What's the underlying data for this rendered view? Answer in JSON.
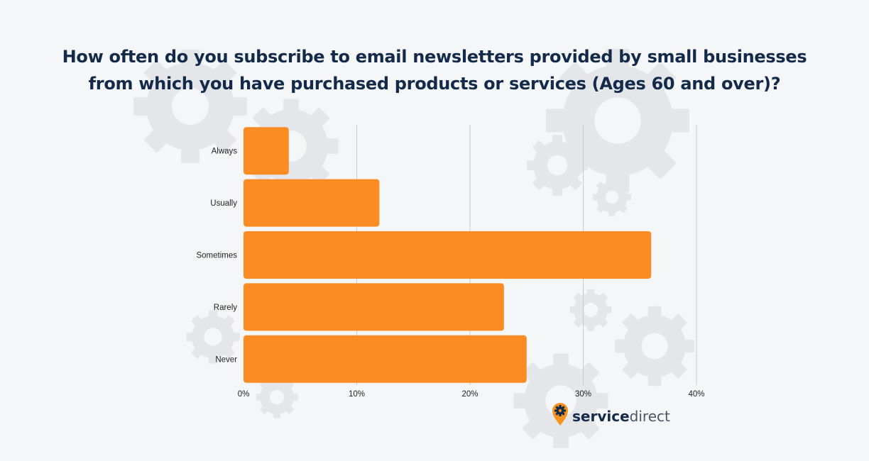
{
  "title": {
    "line1": "How often do you subscribe to email newsletters provided by small businesses",
    "line2": "from which you have purchased products or services (Ages 60 and over)?"
  },
  "brand": {
    "name_part1": "service",
    "name_part2": "direct",
    "icon": "gear-pin-icon",
    "color_orange": "#f7931e",
    "color_navy": "#132a4a",
    "color_gray": "#4b5563"
  },
  "colors": {
    "bar": "#fb8c23",
    "background": "#f5f6f8",
    "gridline": "#c9c9c9",
    "decor_gears": "#e4e6ea"
  },
  "chart_data": {
    "type": "bar",
    "orientation": "horizontal",
    "categories": [
      "Always",
      "Usually",
      "Sometimes",
      "Rarely",
      "Never"
    ],
    "values": [
      4,
      12,
      36,
      23,
      25
    ],
    "value_unit": "%",
    "xlim": [
      0,
      40
    ],
    "xticks": [
      "0%",
      "10%",
      "20%",
      "30%",
      "40%"
    ],
    "xtick_values": [
      0,
      10,
      20,
      30,
      40
    ],
    "grid": "vertical",
    "legend": "none"
  }
}
